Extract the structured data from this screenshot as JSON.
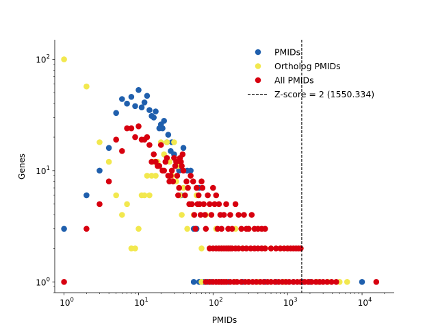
{
  "chart_data": {
    "type": "scatter",
    "xlabel": "PMIDs",
    "ylabel": "Genes",
    "xscale": "log",
    "yscale": "log",
    "xlim": [
      0.75,
      27000
    ],
    "ylim": [
      0.8,
      150
    ],
    "x_ticks": [
      {
        "value": 1,
        "base": "10",
        "exp": "0"
      },
      {
        "value": 10,
        "base": "10",
        "exp": "1"
      },
      {
        "value": 100,
        "base": "10",
        "exp": "2"
      },
      {
        "value": 1000,
        "base": "10",
        "exp": "3"
      },
      {
        "value": 10000,
        "base": "10",
        "exp": "4"
      }
    ],
    "y_ticks": [
      {
        "value": 1,
        "base": "10",
        "exp": "0"
      },
      {
        "value": 10,
        "base": "10",
        "exp": "1"
      },
      {
        "value": 100,
        "base": "10",
        "exp": "2"
      }
    ],
    "grid": false,
    "legend_position": "upper-right",
    "vline": {
      "x": 1550.334,
      "label": "Z-score = 2 (1550.334)",
      "color": "#000000",
      "style": "dashed"
    },
    "series": [
      {
        "name": "PMIDs",
        "color": "#1f5fad",
        "points": [
          [
            1,
            3
          ],
          [
            2,
            6
          ],
          [
            3,
            10
          ],
          [
            4,
            16
          ],
          [
            5,
            33
          ],
          [
            6,
            44
          ],
          [
            7,
            40
          ],
          [
            8,
            46
          ],
          [
            9,
            38
          ],
          [
            10,
            53
          ],
          [
            11,
            37
          ],
          [
            12,
            41
          ],
          [
            13,
            47
          ],
          [
            14,
            35
          ],
          [
            15,
            31
          ],
          [
            16,
            30
          ],
          [
            17,
            34
          ],
          [
            19,
            24
          ],
          [
            20,
            26
          ],
          [
            21,
            24
          ],
          [
            22,
            28
          ],
          [
            24,
            18
          ],
          [
            25,
            21
          ],
          [
            27,
            15
          ],
          [
            28,
            18
          ],
          [
            30,
            14
          ],
          [
            32,
            12
          ],
          [
            35,
            10
          ],
          [
            37,
            6
          ],
          [
            40,
            16
          ],
          [
            45,
            10
          ],
          [
            50,
            10
          ],
          [
            55,
            3
          ],
          [
            60,
            3
          ],
          [
            65,
            7
          ],
          [
            55,
            1
          ],
          [
            65,
            1
          ],
          [
            75,
            1
          ],
          [
            85,
            1
          ],
          [
            95,
            1
          ],
          [
            110,
            1
          ],
          [
            130,
            1
          ],
          [
            160,
            1
          ],
          [
            200,
            1
          ],
          [
            250,
            1
          ],
          [
            300,
            1
          ],
          [
            400,
            1
          ],
          [
            500,
            1
          ],
          [
            700,
            1
          ],
          [
            900,
            1
          ],
          [
            1200,
            1
          ],
          [
            1600,
            1
          ],
          [
            2000,
            1
          ],
          [
            2500,
            1
          ],
          [
            10000,
            1
          ]
        ]
      },
      {
        "name": "Ortholog PMIDs",
        "color": "#f2e84e",
        "points": [
          [
            1,
            100
          ],
          [
            2,
            57
          ],
          [
            3,
            18
          ],
          [
            4,
            12
          ],
          [
            5,
            6
          ],
          [
            6,
            4
          ],
          [
            7,
            5
          ],
          [
            8,
            2
          ],
          [
            9,
            2
          ],
          [
            10,
            3
          ],
          [
            11,
            6
          ],
          [
            12,
            6
          ],
          [
            13,
            9
          ],
          [
            14,
            6
          ],
          [
            15,
            9
          ],
          [
            16,
            12
          ],
          [
            17,
            9
          ],
          [
            18,
            12
          ],
          [
            20,
            18
          ],
          [
            22,
            14
          ],
          [
            24,
            18
          ],
          [
            26,
            12
          ],
          [
            28,
            9
          ],
          [
            30,
            18
          ],
          [
            32,
            8
          ],
          [
            34,
            11
          ],
          [
            36,
            6
          ],
          [
            38,
            4
          ],
          [
            40,
            7
          ],
          [
            45,
            3
          ],
          [
            50,
            5
          ],
          [
            55,
            4
          ],
          [
            60,
            6
          ],
          [
            70,
            2
          ],
          [
            80,
            4
          ],
          [
            90,
            2
          ],
          [
            110,
            3
          ],
          [
            130,
            2
          ],
          [
            160,
            2
          ],
          [
            200,
            3
          ],
          [
            250,
            2
          ],
          [
            300,
            3
          ],
          [
            400,
            3
          ],
          [
            500,
            2
          ],
          [
            600,
            2
          ],
          [
            800,
            2
          ],
          [
            1000,
            2
          ],
          [
            70,
            1
          ],
          [
            90,
            1
          ],
          [
            120,
            1
          ],
          [
            150,
            1
          ],
          [
            200,
            1
          ],
          [
            300,
            1
          ],
          [
            400,
            1
          ],
          [
            600,
            1
          ],
          [
            900,
            1
          ],
          [
            1500,
            1
          ],
          [
            2500,
            1
          ],
          [
            3500,
            1
          ],
          [
            5000,
            1
          ],
          [
            6300,
            1
          ]
        ]
      },
      {
        "name": "All PMIDs",
        "color": "#d7000f",
        "points": [
          [
            1,
            1
          ],
          [
            2,
            3
          ],
          [
            3,
            5
          ],
          [
            4,
            8
          ],
          [
            5,
            19
          ],
          [
            6,
            15
          ],
          [
            7,
            24
          ],
          [
            8,
            24
          ],
          [
            9,
            20
          ],
          [
            10,
            25
          ],
          [
            11,
            19
          ],
          [
            12,
            19
          ],
          [
            13,
            20
          ],
          [
            14,
            17
          ],
          [
            15,
            12
          ],
          [
            16,
            14
          ],
          [
            17,
            12
          ],
          [
            18,
            11
          ],
          [
            19,
            11
          ],
          [
            20,
            17
          ],
          [
            21,
            10
          ],
          [
            22,
            10
          ],
          [
            23,
            12
          ],
          [
            24,
            13
          ],
          [
            25,
            9
          ],
          [
            26,
            8
          ],
          [
            27,
            9
          ],
          [
            28,
            10
          ],
          [
            29,
            8
          ],
          [
            30,
            13
          ],
          [
            31,
            11
          ],
          [
            32,
            12
          ],
          [
            33,
            9
          ],
          [
            34,
            6
          ],
          [
            35,
            7
          ],
          [
            36,
            13
          ],
          [
            37,
            12
          ],
          [
            38,
            11
          ],
          [
            39,
            14
          ],
          [
            40,
            10
          ],
          [
            42,
            6
          ],
          [
            44,
            8
          ],
          [
            46,
            7
          ],
          [
            48,
            5
          ],
          [
            50,
            9
          ],
          [
            52,
            5
          ],
          [
            54,
            8
          ],
          [
            56,
            4
          ],
          [
            58,
            3
          ],
          [
            60,
            7
          ],
          [
            62,
            5
          ],
          [
            64,
            6
          ],
          [
            66,
            5
          ],
          [
            68,
            4
          ],
          [
            70,
            8
          ],
          [
            72,
            7
          ],
          [
            75,
            5
          ],
          [
            78,
            4
          ],
          [
            80,
            3
          ],
          [
            85,
            6
          ],
          [
            90,
            5
          ],
          [
            95,
            4
          ],
          [
            100,
            7
          ],
          [
            105,
            5
          ],
          [
            110,
            6
          ],
          [
            115,
            3
          ],
          [
            120,
            5
          ],
          [
            125,
            4
          ],
          [
            130,
            3
          ],
          [
            140,
            4
          ],
          [
            150,
            5
          ],
          [
            160,
            3
          ],
          [
            170,
            4
          ],
          [
            180,
            3
          ],
          [
            200,
            5
          ],
          [
            220,
            4
          ],
          [
            240,
            3
          ],
          [
            260,
            4
          ],
          [
            280,
            3
          ],
          [
            300,
            3
          ],
          [
            330,
            4
          ],
          [
            360,
            3
          ],
          [
            400,
            3
          ],
          [
            450,
            3
          ],
          [
            500,
            3
          ],
          [
            90,
            2
          ],
          [
            100,
            2
          ],
          [
            110,
            2
          ],
          [
            120,
            2
          ],
          [
            130,
            2
          ],
          [
            140,
            2
          ],
          [
            150,
            2
          ],
          [
            160,
            2
          ],
          [
            170,
            2
          ],
          [
            180,
            2
          ],
          [
            200,
            2
          ],
          [
            220,
            2
          ],
          [
            250,
            2
          ],
          [
            280,
            2
          ],
          [
            320,
            2
          ],
          [
            360,
            2
          ],
          [
            400,
            2
          ],
          [
            450,
            2
          ],
          [
            500,
            2
          ],
          [
            600,
            2
          ],
          [
            700,
            2
          ],
          [
            800,
            2
          ],
          [
            900,
            2
          ],
          [
            1000,
            2
          ],
          [
            1100,
            2
          ],
          [
            1200,
            2
          ],
          [
            1300,
            2
          ],
          [
            1400,
            2
          ],
          [
            1500,
            2
          ],
          [
            80,
            1
          ],
          [
            90,
            1
          ],
          [
            100,
            1
          ],
          [
            110,
            1
          ],
          [
            120,
            1
          ],
          [
            130,
            1
          ],
          [
            140,
            1
          ],
          [
            150,
            1
          ],
          [
            170,
            1
          ],
          [
            190,
            1
          ],
          [
            210,
            1
          ],
          [
            240,
            1
          ],
          [
            270,
            1
          ],
          [
            300,
            1
          ],
          [
            340,
            1
          ],
          [
            380,
            1
          ],
          [
            430,
            1
          ],
          [
            480,
            1
          ],
          [
            540,
            1
          ],
          [
            600,
            1
          ],
          [
            680,
            1
          ],
          [
            760,
            1
          ],
          [
            850,
            1
          ],
          [
            950,
            1
          ],
          [
            1050,
            1
          ],
          [
            1200,
            1
          ],
          [
            1350,
            1
          ],
          [
            1500,
            1
          ],
          [
            1700,
            1
          ],
          [
            1900,
            1
          ],
          [
            2100,
            1
          ],
          [
            2400,
            1
          ],
          [
            2700,
            1
          ],
          [
            3000,
            1
          ],
          [
            3400,
            1
          ],
          [
            3900,
            1
          ],
          [
            4500,
            1
          ],
          [
            15500,
            1
          ]
        ]
      }
    ]
  }
}
